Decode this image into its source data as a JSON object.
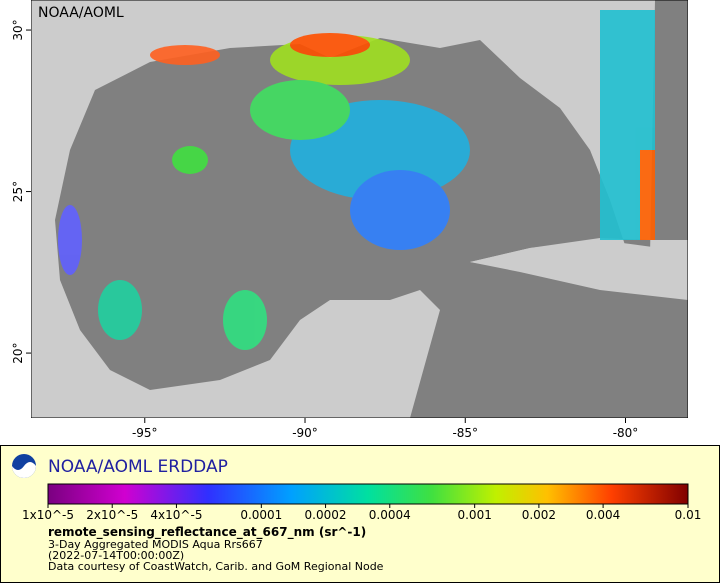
{
  "header": {
    "title": "NOAA/AOML"
  },
  "map": {
    "xlim": [
      -98.55,
      -78.05
    ],
    "ylim": [
      17.99,
      30.93
    ],
    "xticks": [
      {
        "value": -95,
        "label": "-95°"
      },
      {
        "value": -90,
        "label": "-90°"
      },
      {
        "value": -85,
        "label": "-85°"
      },
      {
        "value": -80,
        "label": "-80°"
      }
    ],
    "yticks": [
      {
        "value": 20,
        "label": "20°"
      },
      {
        "value": 25,
        "label": "25°"
      },
      {
        "value": 30,
        "label": "30°"
      }
    ]
  },
  "legend": {
    "title": "NOAA/AOML ERDDAP",
    "colorbar": {
      "lim": [
        1e-05,
        0.01
      ],
      "log": true,
      "ticks": [
        {
          "value": 1e-05,
          "label": "1x10^-5"
        },
        {
          "value": 2e-05,
          "label": "2x10^-5"
        },
        {
          "value": 4e-05,
          "label": "4x10^-5"
        },
        {
          "value": 0.0001,
          "label": "0.0001"
        },
        {
          "value": 0.0002,
          "label": "0.0002"
        },
        {
          "value": 0.0004,
          "label": "0.0004"
        },
        {
          "value": 0.001,
          "label": "0.001"
        },
        {
          "value": 0.002,
          "label": "0.002"
        },
        {
          "value": 0.004,
          "label": "0.004"
        },
        {
          "value": 0.01,
          "label": "0.01"
        }
      ]
    },
    "variable": "remote_sensing_reflectance_at_667_nm (sr^-1)",
    "lines": [
      "3-Day Aggregated MODIS Aqua Rrs667",
      "(2022-07-14T00:00:00Z)",
      "Data courtesy of CoastWatch, Carib. and GoM Regional Node"
    ]
  }
}
